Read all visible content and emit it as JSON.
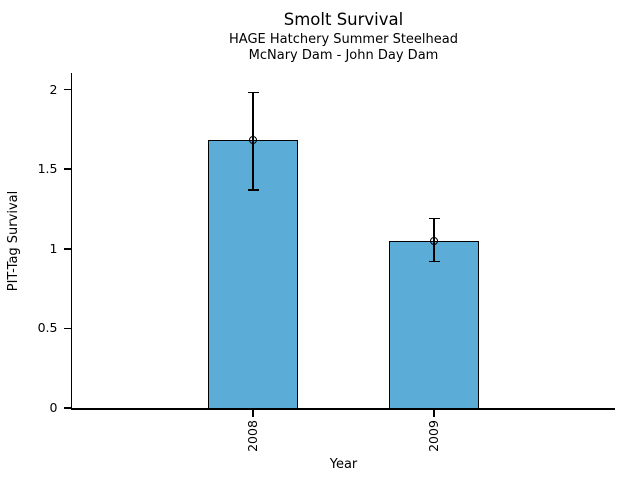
{
  "chart_data": {
    "type": "bar",
    "title": "Smolt Survival",
    "subtitle1": "HAGE Hatchery Summer Steelhead",
    "subtitle2": "McNary Dam - John Day Dam",
    "xlabel": "Year",
    "ylabel": "PIT-Tag Survival",
    "categories": [
      "2008",
      "2009"
    ],
    "values": [
      1.68,
      1.05
    ],
    "error_low": [
      1.37,
      0.92
    ],
    "error_high": [
      1.98,
      1.19
    ],
    "ylim": [
      0,
      2
    ],
    "yticks": [
      0,
      0.5,
      1,
      1.5,
      2
    ],
    "ytick_labels": [
      "0",
      "0.5",
      "1",
      "1.5",
      "2"
    ],
    "bar_color": "#5BACD6",
    "bar_border_color": "#000000",
    "axis_color": "#000000",
    "marker": "open-circle",
    "error_bars": true,
    "grid": false,
    "legend": false
  }
}
